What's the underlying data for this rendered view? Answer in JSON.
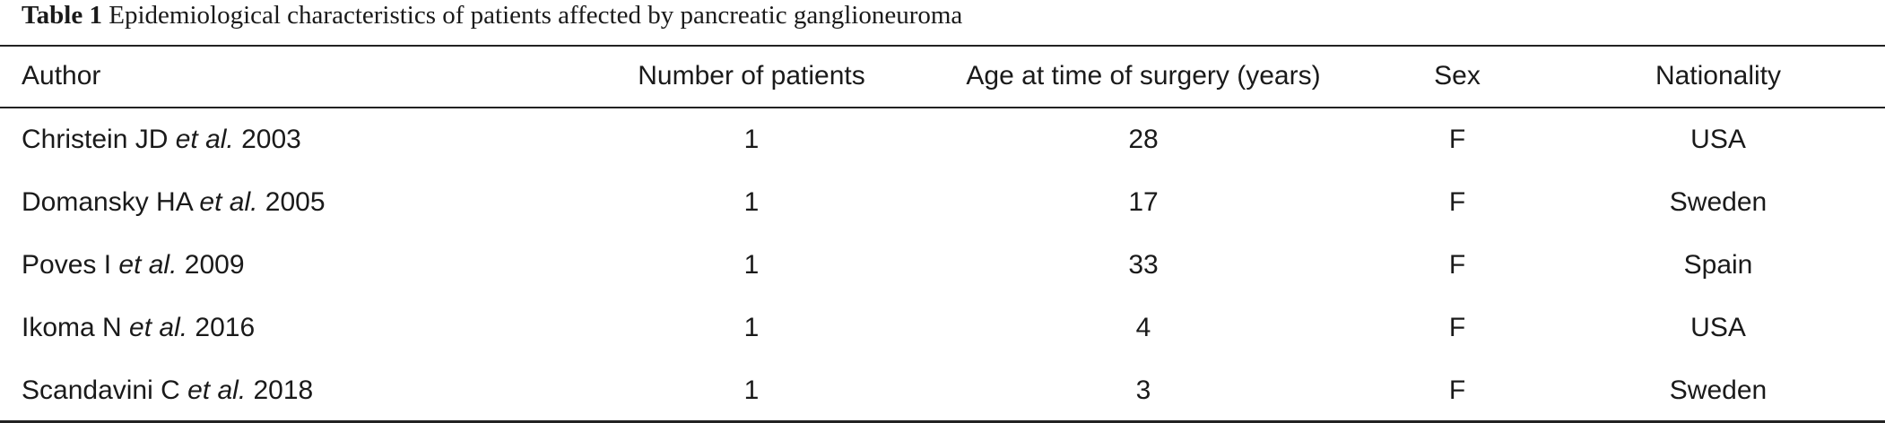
{
  "caption": {
    "label": "Table 1",
    "text": " Epidemiological characteristics of patients affected by pancreatic ganglioneuroma"
  },
  "table": {
    "headers": [
      "Author",
      "Number of patients",
      "Age at time of surgery (years)",
      "Sex",
      "Nationality"
    ],
    "rows": [
      {
        "author_name": "Christein JD ",
        "author_etal": "et al.",
        "author_year": " 2003",
        "patients": "1",
        "age": "28",
        "sex": "F",
        "nationality": "USA"
      },
      {
        "author_name": "Domansky HA ",
        "author_etal": "et al.",
        "author_year": " 2005",
        "patients": "1",
        "age": "17",
        "sex": "F",
        "nationality": "Sweden"
      },
      {
        "author_name": "Poves I ",
        "author_etal": "et al.",
        "author_year": " 2009",
        "patients": "1",
        "age": "33",
        "sex": "F",
        "nationality": "Spain"
      },
      {
        "author_name": "Ikoma N ",
        "author_etal": "et al.",
        "author_year": " 2016",
        "patients": "1",
        "age": "4",
        "sex": "F",
        "nationality": "USA"
      },
      {
        "author_name": "Scandavini C ",
        "author_etal": "et al.",
        "author_year": " 2018",
        "patients": "1",
        "age": "3",
        "sex": "F",
        "nationality": "Sweden"
      }
    ]
  }
}
